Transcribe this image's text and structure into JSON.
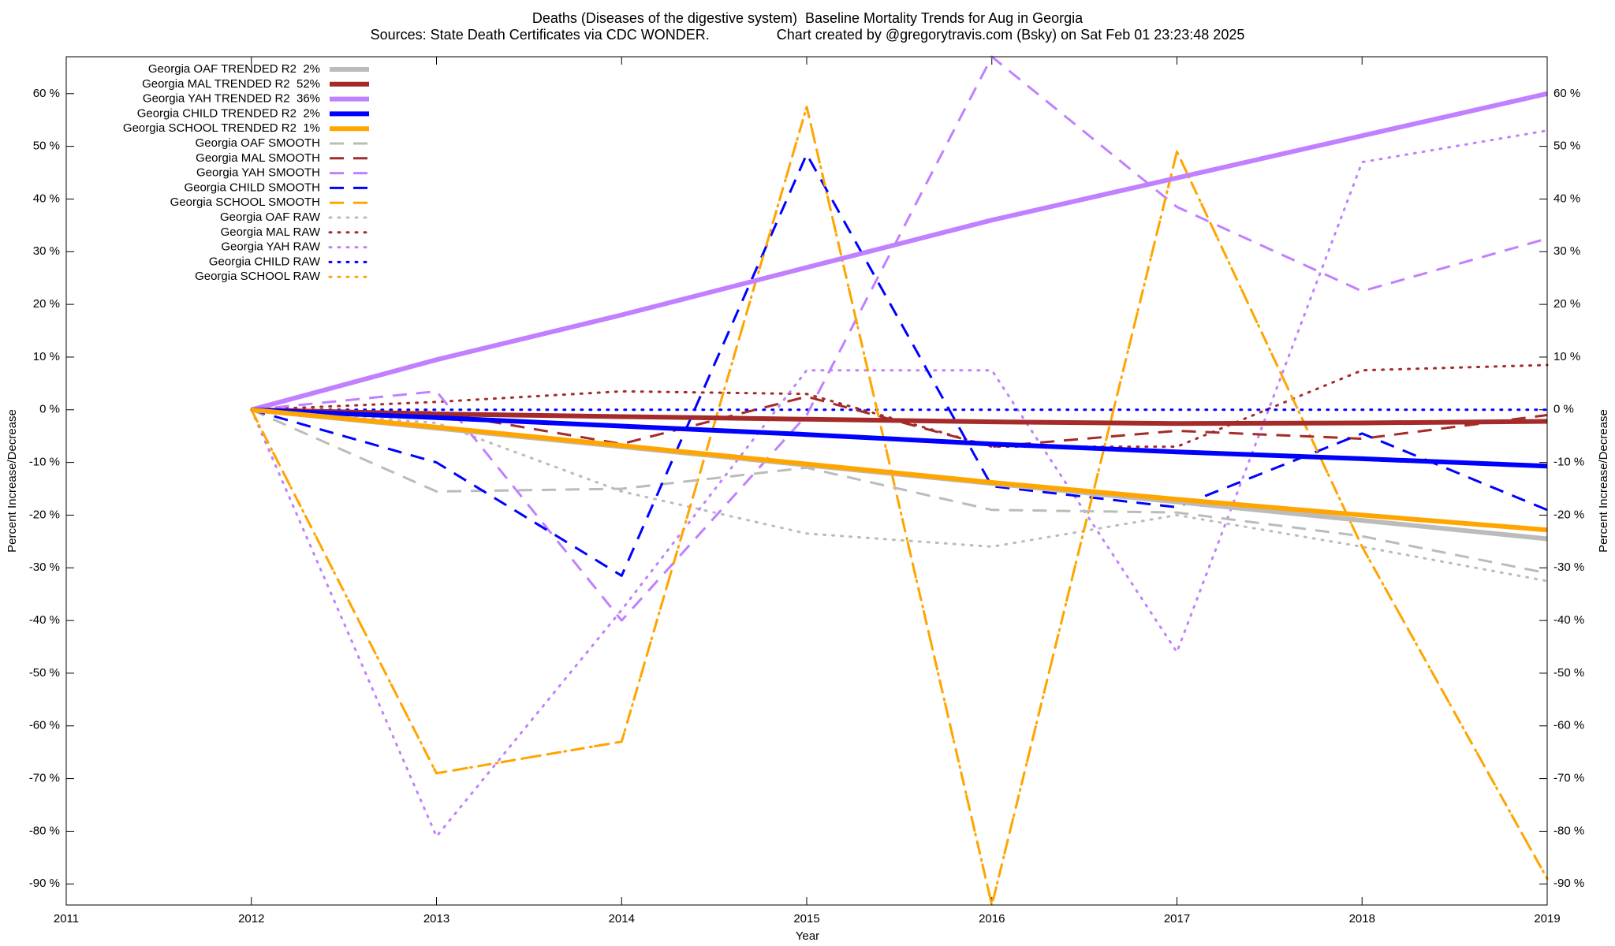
{
  "chart_data": {
    "type": "line",
    "title": "Deaths (Diseases of the digestive system)  Baseline Mortality Trends for Aug in Georgia",
    "subtitle": "Sources: State Death Certificates via CDC WONDER.                 Chart created by @gregorytravis.com (Bsky) on Sat Feb 01 23:23:48 2025",
    "x_label": "Year",
    "y_label": "Percent Increase/Decrease",
    "y2_label": "Percent Increase/Decrease",
    "x": [
      2012,
      2013,
      2014,
      2015,
      2016,
      2017,
      2018,
      2019
    ],
    "xlim": [
      2011,
      2019
    ],
    "xticks": [
      2011,
      2012,
      2013,
      2014,
      2015,
      2016,
      2017,
      2018,
      2019
    ],
    "ylim": [
      -94,
      67
    ],
    "yticks": [
      {
        "value": -90,
        "label": "-90 %"
      },
      {
        "value": -80,
        "label": "-80 %"
      },
      {
        "value": -70,
        "label": "-70 %"
      },
      {
        "value": -60,
        "label": "-60 %"
      },
      {
        "value": -50,
        "label": "-50 %"
      },
      {
        "value": -40,
        "label": "-40 %"
      },
      {
        "value": -30,
        "label": "-30 %"
      },
      {
        "value": -20,
        "label": "-20 %"
      },
      {
        "value": -10,
        "label": "-10 %"
      },
      {
        "value": 0,
        "label": "0 %"
      },
      {
        "value": 10,
        "label": "10 %"
      },
      {
        "value": 20,
        "label": "20 %"
      },
      {
        "value": 30,
        "label": "30 %"
      },
      {
        "value": 40,
        "label": "40 %"
      },
      {
        "value": 50,
        "label": "50 %"
      },
      {
        "value": 60,
        "label": "60 %"
      }
    ],
    "grid": false,
    "legend": "top left",
    "series": [
      {
        "name": "Georgia OAF TRENDED R2  2%",
        "color": "#bbbbbb",
        "line_style": "solid",
        "values": [
          0,
          -3.5,
          -7,
          -10.5,
          -14,
          -17.5,
          -21,
          -24.5
        ]
      },
      {
        "name": "Georgia MAL TRENDED R2  52%",
        "color": "#a52a2a",
        "line_style": "solid",
        "values": [
          0,
          -0.8,
          -1.3,
          -1.8,
          -2.3,
          -2.6,
          -2.5,
          -2.2
        ]
      },
      {
        "name": "Georgia YAH TRENDED R2  36%",
        "color": "#c080ff",
        "line_style": "solid",
        "values": [
          0,
          9.5,
          18,
          27,
          36,
          44,
          52,
          60
        ]
      },
      {
        "name": "Georgia CHILD TRENDED R2  2%",
        "color": "#0000ff",
        "line_style": "solid",
        "values": [
          0,
          -1.5,
          -3.1,
          -4.7,
          -6.5,
          -8,
          -9.3,
          -10.7
        ]
      },
      {
        "name": "Georgia SCHOOL TRENDED R2  1%",
        "color": "#ffa500",
        "line_style": "solid",
        "values": [
          0,
          -3.3,
          -6.8,
          -10.3,
          -13.8,
          -17,
          -20,
          -22.8
        ]
      },
      {
        "name": "Georgia OAF SMOOTH",
        "color": "#bbbbbb",
        "line_style": "dashed",
        "values": [
          0,
          -15.5,
          -15,
          -11,
          -19,
          -19.5,
          -24,
          -31
        ]
      },
      {
        "name": "Georgia MAL SMOOTH",
        "color": "#a52a2a",
        "line_style": "dashed",
        "values": [
          0,
          -0.5,
          -6.5,
          2.5,
          -7,
          -4,
          -5.5,
          -1
        ]
      },
      {
        "name": "Georgia YAH SMOOTH",
        "color": "#c080ff",
        "line_style": "dashed",
        "values": [
          0,
          3.5,
          -40,
          -1,
          67,
          38.5,
          22.5,
          32.5
        ]
      },
      {
        "name": "Georgia CHILD SMOOTH",
        "color": "#0000ff",
        "line_style": "dashed",
        "values": [
          0,
          -10,
          -31.5,
          48.5,
          -14.5,
          -18.5,
          -4.5,
          -19
        ]
      },
      {
        "name": "Georgia SCHOOL SMOOTH",
        "color": "#ffa500",
        "line_style": "dashed",
        "values": [
          0,
          -69,
          -63,
          57.5,
          -94,
          49,
          -26,
          -89
        ]
      },
      {
        "name": "Georgia OAF RAW",
        "color": "#bbbbbb",
        "line_style": "dotted",
        "values": [
          0,
          -2.5,
          -15.5,
          -23.5,
          -26,
          -20,
          -26,
          -32.5
        ]
      },
      {
        "name": "Georgia MAL RAW",
        "color": "#a52a2a",
        "line_style": "dotted",
        "values": [
          0,
          1.5,
          3.5,
          3,
          -7,
          -7,
          7.5,
          8.5
        ]
      },
      {
        "name": "Georgia YAH RAW",
        "color": "#c080ff",
        "line_style": "dotted",
        "values": [
          0,
          -81,
          -38,
          7.5,
          7.5,
          -46,
          47,
          53
        ]
      },
      {
        "name": "Georgia CHILD RAW",
        "color": "#0000ff",
        "line_style": "dotted",
        "values": [
          0,
          0,
          0,
          0,
          0,
          0,
          0,
          0
        ]
      },
      {
        "name": "Georgia SCHOOL RAW",
        "color": "#ffa500",
        "line_style": "dotted",
        "values": [
          0,
          -69,
          -63,
          57.5,
          -94,
          49,
          -26,
          -89
        ]
      }
    ]
  }
}
